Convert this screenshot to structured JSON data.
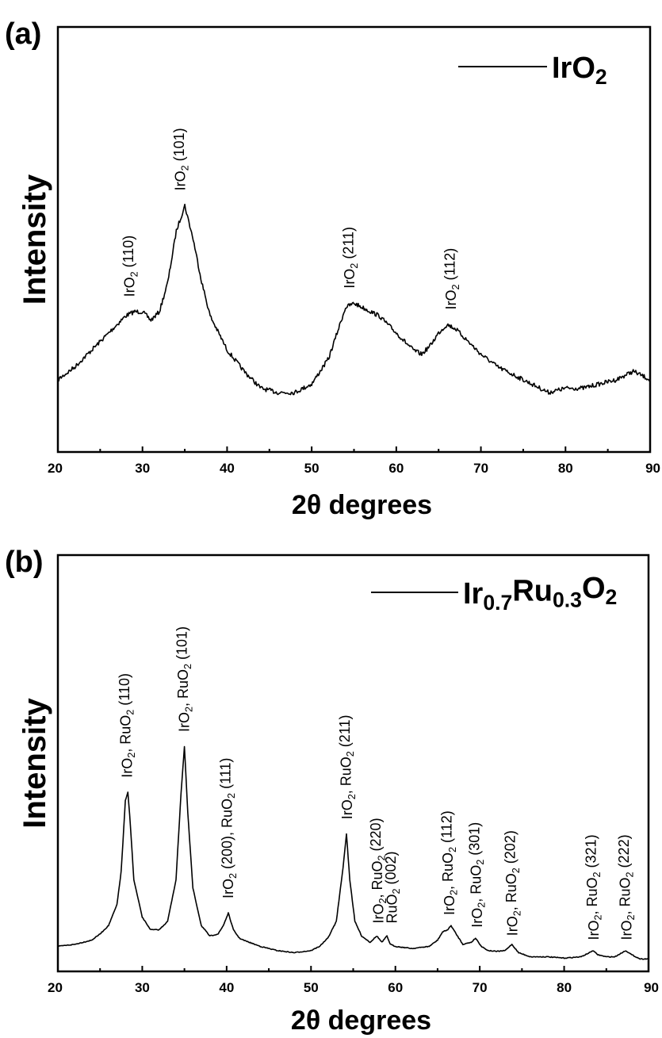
{
  "chart_data": [
    {
      "panel": "(a)",
      "type": "line",
      "xlabel": "2θ degrees",
      "ylabel": "Intensity",
      "xlim": [
        20,
        90
      ],
      "xticks": [
        20,
        30,
        40,
        50,
        60,
        70,
        80,
        90
      ],
      "ylim": [
        0,
        100
      ],
      "yticks_shown": false,
      "grid": false,
      "legend": {
        "placement": "top-right",
        "entries": [
          {
            "text": "IrO",
            "sub": "2"
          }
        ]
      },
      "series": [
        {
          "name": "IrO2",
          "x": [
            20,
            22,
            24,
            26,
            28,
            29,
            30,
            31,
            32,
            33,
            34,
            35,
            36,
            37,
            38,
            40,
            42,
            44,
            46,
            48,
            50,
            52,
            53,
            54,
            55,
            56,
            58,
            60,
            62,
            63,
            64,
            65,
            66,
            67,
            68,
            70,
            72,
            74,
            76,
            78,
            80,
            82,
            84,
            86,
            88,
            90
          ],
          "y": [
            17,
            20,
            24,
            28,
            32,
            33,
            33,
            31,
            33,
            40,
            52,
            58,
            50,
            40,
            32,
            24,
            19,
            15,
            14,
            14,
            16,
            22,
            28,
            34,
            35,
            34,
            32,
            28,
            24,
            23,
            25,
            28,
            30,
            29,
            27,
            23,
            20,
            18,
            16,
            14,
            15,
            15,
            16,
            17,
            19,
            17
          ]
        }
      ],
      "annotations": [
        {
          "x": 28.5,
          "y": 35,
          "parts": [
            {
              "t": "IrO"
            },
            {
              "t": "2",
              "sub": true
            },
            {
              "t": " (110)"
            }
          ]
        },
        {
          "x": 34.5,
          "y": 60,
          "parts": [
            {
              "t": "IrO"
            },
            {
              "t": "2",
              "sub": true
            },
            {
              "t": " (101)"
            }
          ]
        },
        {
          "x": 54.5,
          "y": 37,
          "parts": [
            {
              "t": "IrO"
            },
            {
              "t": "2",
              "sub": true
            },
            {
              "t": " (211)"
            }
          ]
        },
        {
          "x": 66.5,
          "y": 32,
          "parts": [
            {
              "t": "IrO"
            },
            {
              "t": "2",
              "sub": true
            },
            {
              "t": " (112)"
            }
          ]
        }
      ]
    },
    {
      "panel": "(b)",
      "type": "line",
      "xlabel": "2θ degrees",
      "ylabel": "Intensity",
      "xlim": [
        20,
        90
      ],
      "xticks": [
        20,
        30,
        40,
        50,
        60,
        70,
        80,
        90
      ],
      "ylim": [
        0,
        100
      ],
      "yticks_shown": false,
      "grid": false,
      "legend": {
        "placement": "top-right",
        "entries": [
          {
            "parts": [
              {
                "t": "Ir"
              },
              {
                "t": "0.7",
                "sub": true
              },
              {
                "t": "Ru"
              },
              {
                "t": "0.3",
                "sub": true
              },
              {
                "t": "O"
              },
              {
                "t": "2",
                "sub": true
              }
            ]
          }
        ]
      },
      "series": [
        {
          "name": "Ir0.7Ru0.3O2",
          "x": [
            20,
            22,
            24,
            25,
            26,
            27,
            27.5,
            28,
            28.3,
            28.6,
            29,
            30,
            31,
            32,
            33,
            34,
            34.6,
            35,
            35.4,
            36,
            37,
            38,
            39,
            39.6,
            40.2,
            40.8,
            41.5,
            42,
            44,
            46,
            48,
            50,
            51,
            52,
            53,
            53.8,
            54.2,
            54.6,
            55.2,
            56,
            57,
            57.8,
            58.4,
            59,
            59.4,
            60,
            62,
            64,
            65,
            65.6,
            66.2,
            66.6,
            67.2,
            68,
            69,
            69.5,
            70.2,
            71,
            72,
            73,
            73.8,
            74.6,
            76,
            78,
            80,
            82,
            83,
            83.4,
            84,
            85,
            86,
            87.3,
            88,
            89,
            90
          ],
          "y": [
            6,
            6.5,
            7.5,
            9,
            11,
            16,
            24,
            41,
            43,
            35,
            22,
            13,
            10,
            10,
            12,
            22,
            43,
            54,
            38,
            20,
            11,
            8.5,
            9,
            11,
            14,
            10,
            8,
            7.5,
            6,
            5,
            4.5,
            5,
            6,
            8,
            12,
            25,
            33,
            22,
            12,
            8.5,
            7,
            8.5,
            7,
            8.5,
            6.5,
            6,
            5.5,
            6,
            7.5,
            9.5,
            10,
            11,
            9,
            6.5,
            7,
            8,
            6,
            5,
            4.8,
            5,
            6.5,
            4.5,
            3.5,
            3.5,
            3.2,
            3.5,
            4.5,
            5,
            4,
            3.5,
            3.5,
            5,
            4,
            3,
            3
          ]
        }
      ],
      "annotations": [
        {
          "x": 28.2,
          "y": 45,
          "parts": [
            {
              "t": "IrO"
            },
            {
              "t": "2",
              "sub": true
            },
            {
              "t": ", RuO"
            },
            {
              "t": "2",
              "sub": true
            },
            {
              "t": " (110)"
            }
          ]
        },
        {
          "x": 35.0,
          "y": 56,
          "parts": [
            {
              "t": "IrO"
            },
            {
              "t": "2",
              "sub": true
            },
            {
              "t": ", RuO"
            },
            {
              "t": "2",
              "sub": true
            },
            {
              "t": " (101)"
            }
          ]
        },
        {
          "x": 40.2,
          "y": 16,
          "parts": [
            {
              "t": "IrO"
            },
            {
              "t": "2",
              "sub": true
            },
            {
              "t": " (200), RuO"
            },
            {
              "t": "2",
              "sub": true
            },
            {
              "t": " (111)"
            }
          ]
        },
        {
          "x": 54.3,
          "y": 35,
          "parts": [
            {
              "t": "IrO"
            },
            {
              "t": "2",
              "sub": true
            },
            {
              "t": ", RuO"
            },
            {
              "t": "2",
              "sub": true
            },
            {
              "t": " (211)"
            }
          ]
        },
        {
          "x": 58.0,
          "y": 10,
          "parts": [
            {
              "t": "IrO"
            },
            {
              "t": "2",
              "sub": true
            },
            {
              "t": ", RuO"
            },
            {
              "t": "2",
              "sub": true
            },
            {
              "t": " (220)"
            }
          ]
        },
        {
          "x": 59.6,
          "y": 10,
          "parts": [
            {
              "t": "RuO"
            },
            {
              "t": "2",
              "sub": true
            },
            {
              "t": " (002)"
            }
          ]
        },
        {
          "x": 66.4,
          "y": 12,
          "parts": [
            {
              "t": "IrO"
            },
            {
              "t": "2",
              "sub": true
            },
            {
              "t": ", RuO"
            },
            {
              "t": "2",
              "sub": true
            },
            {
              "t": " (112)"
            }
          ]
        },
        {
          "x": 69.7,
          "y": 9,
          "parts": [
            {
              "t": "IrO"
            },
            {
              "t": "2",
              "sub": true
            },
            {
              "t": ", RuO"
            },
            {
              "t": "2",
              "sub": true
            },
            {
              "t": " (301)"
            }
          ]
        },
        {
          "x": 73.9,
          "y": 7,
          "parts": [
            {
              "t": "IrO"
            },
            {
              "t": "2",
              "sub": true
            },
            {
              "t": ", RuO"
            },
            {
              "t": "2",
              "sub": true
            },
            {
              "t": " (202)"
            }
          ]
        },
        {
          "x": 83.5,
          "y": 6,
          "parts": [
            {
              "t": "IrO"
            },
            {
              "t": "2",
              "sub": true
            },
            {
              "t": ", RuO"
            },
            {
              "t": "2",
              "sub": true
            },
            {
              "t": " (321)"
            }
          ]
        },
        {
          "x": 87.4,
          "y": 6,
          "parts": [
            {
              "t": "IrO"
            },
            {
              "t": "2",
              "sub": true
            },
            {
              "t": ", RuO"
            },
            {
              "t": "2",
              "sub": true
            },
            {
              "t": " (222)"
            }
          ]
        }
      ]
    }
  ]
}
